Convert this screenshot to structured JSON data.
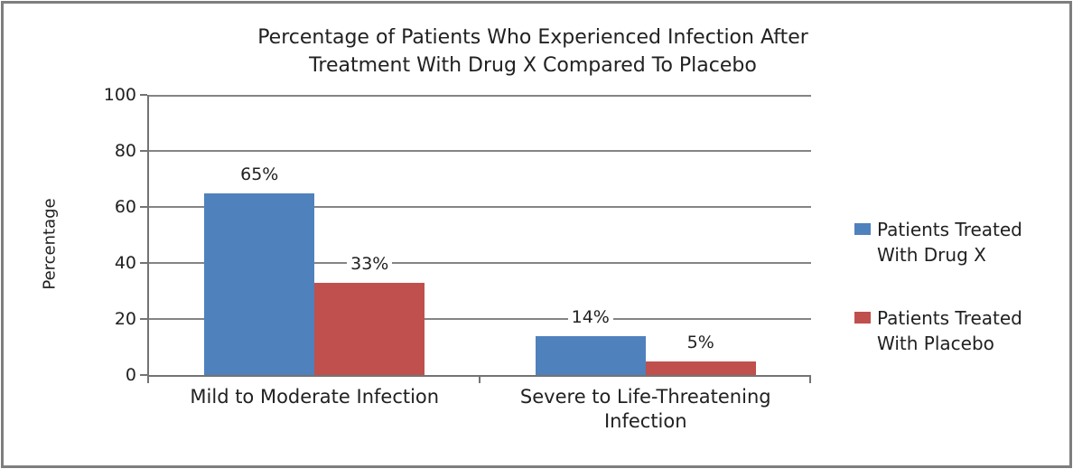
{
  "chart_data": {
    "type": "bar",
    "title": "Percentage of Patients Who Experienced Infection After Treatment With Drug X Compared To Placebo",
    "title_lines": [
      "Percentage of Patients Who Experienced Infection After",
      "Treatment With Drug X Compared To Placebo"
    ],
    "ylabel": "Percentage",
    "ylim": [
      0,
      100
    ],
    "yticks": [
      0,
      20,
      40,
      60,
      80,
      100
    ],
    "grid": true,
    "legend_position": "right",
    "categories": [
      "Mild to Moderate Infection",
      "Severe to Life-Threatening Infection"
    ],
    "series": [
      {
        "id": "drug-x",
        "name": "Patients Treated With Drug X",
        "color": "#4F81BD",
        "values": [
          65,
          14
        ],
        "data_labels": [
          "65%",
          "14%"
        ]
      },
      {
        "id": "placebo",
        "name": "Patients Treated With Placebo",
        "color": "#C0504D",
        "values": [
          33,
          5
        ],
        "data_labels": [
          "33%",
          "5%"
        ]
      }
    ],
    "colors": {
      "axis": "#737373",
      "gridline": "#848484",
      "text": "#212121",
      "frame_border": "#7E7E7E",
      "background": "#FFFFFF"
    }
  }
}
